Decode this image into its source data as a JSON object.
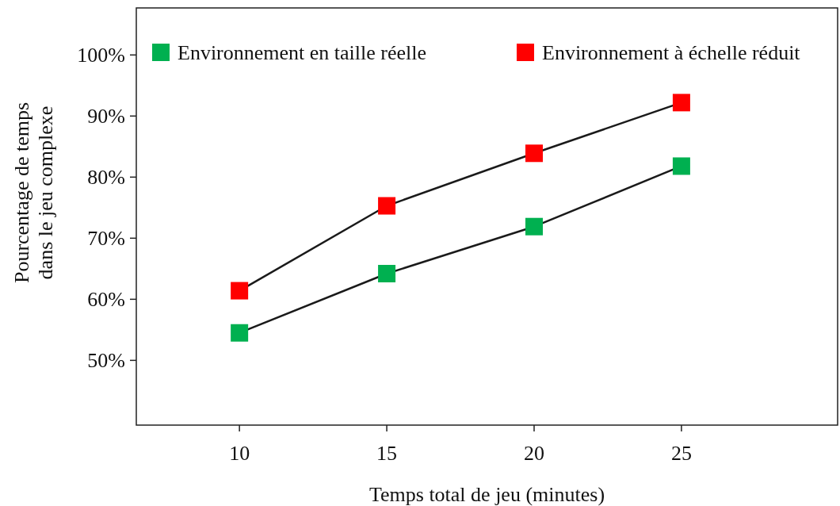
{
  "chart_data": {
    "type": "line",
    "xlabel": "Temps total de jeu (minutes)",
    "ylabel": "Pourcentage de temps\ndans le jeu complexe",
    "x": [
      10,
      15,
      20,
      25
    ],
    "series": [
      {
        "name": "Environnement en taille réelle",
        "color": "#00b050",
        "values": [
          54.5,
          64.2,
          71.9,
          81.8
        ]
      },
      {
        "name": "Environnement à échelle réduit",
        "color": "#ff0000",
        "values": [
          61.4,
          75.3,
          83.9,
          92.2
        ]
      }
    ],
    "xlim": [
      6.5,
      30.3
    ],
    "xticks": [
      10,
      15,
      20,
      25
    ],
    "ylim": [
      39.4,
      107.7
    ],
    "yticks": [
      {
        "value": 50,
        "label": "50%"
      },
      {
        "value": 60,
        "label": "60%"
      },
      {
        "value": 70,
        "label": "70%"
      },
      {
        "value": 80,
        "label": "80%"
      },
      {
        "value": 90,
        "label": "90%"
      },
      {
        "value": 100,
        "label": "100%"
      }
    ],
    "marker": "square",
    "line_style": "solid",
    "grid": false,
    "legend": "top"
  }
}
